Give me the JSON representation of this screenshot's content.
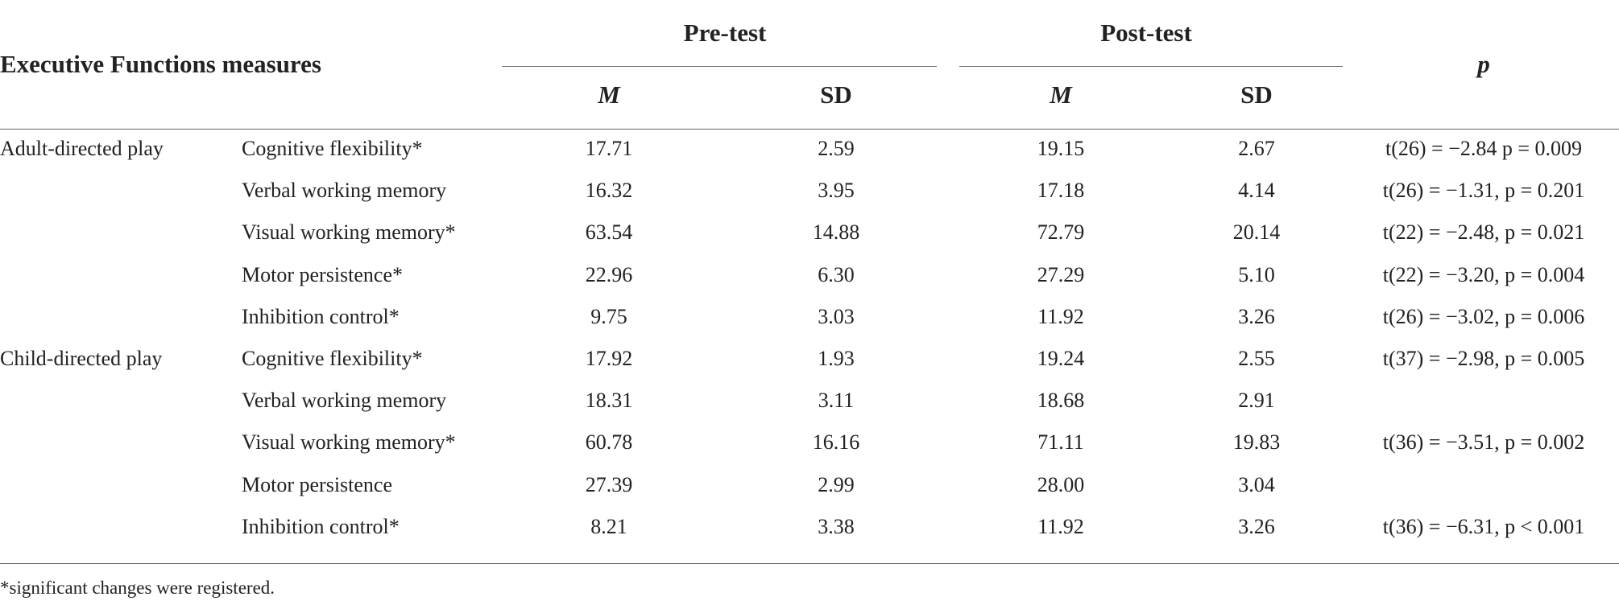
{
  "table": {
    "header": {
      "measures": "Executive Functions measures",
      "pre": "Pre-test",
      "post": "Post-test",
      "p": "p",
      "pre_m": "M",
      "pre_sd": "SD",
      "post_m": "M",
      "post_sd": "SD"
    },
    "groups": [
      {
        "name": "Adult-directed play",
        "rows": [
          [
            "Cognitive flexibility*",
            "17.71",
            "2.59",
            "19.15",
            "2.67",
            "t(26) = −2.84 p = 0.009"
          ],
          [
            "Verbal working memory",
            "16.32",
            "3.95",
            "17.18",
            "4.14",
            "t(26) = −1.31, p = 0.201"
          ],
          [
            "Visual working memory*",
            "63.54",
            "14.88",
            "72.79",
            "20.14",
            "t(22) = −2.48, p = 0.021"
          ],
          [
            "Motor persistence*",
            "22.96",
            "6.30",
            "27.29",
            "5.10",
            "t(22) = −3.20, p = 0.004"
          ],
          [
            "Inhibition control*",
            "9.75",
            "3.03",
            "11.92",
            "3.26",
            "t(26) = −3.02, p = 0.006"
          ]
        ]
      },
      {
        "name": "Child-directed play",
        "rows": [
          [
            "Cognitive flexibility*",
            "17.92",
            "1.93",
            "19.24",
            "2.55",
            "t(37) = −2.98, p = 0.005"
          ],
          [
            "Verbal working memory",
            "18.31",
            "3.11",
            "18.68",
            "2.91",
            null
          ],
          [
            "Visual working memory*",
            "60.78",
            "16.16",
            "71.11",
            "19.83",
            "t(36) = −3.51, p = 0.002"
          ],
          [
            "Motor persistence",
            "27.39",
            "2.99",
            "28.00",
            "3.04",
            null
          ],
          [
            "Inhibition control*",
            "8.21",
            "3.38",
            "11.92",
            "3.26",
            "t(36) = −6.31, p < 0.001"
          ]
        ]
      }
    ],
    "footnote": "*significant changes were registered."
  }
}
